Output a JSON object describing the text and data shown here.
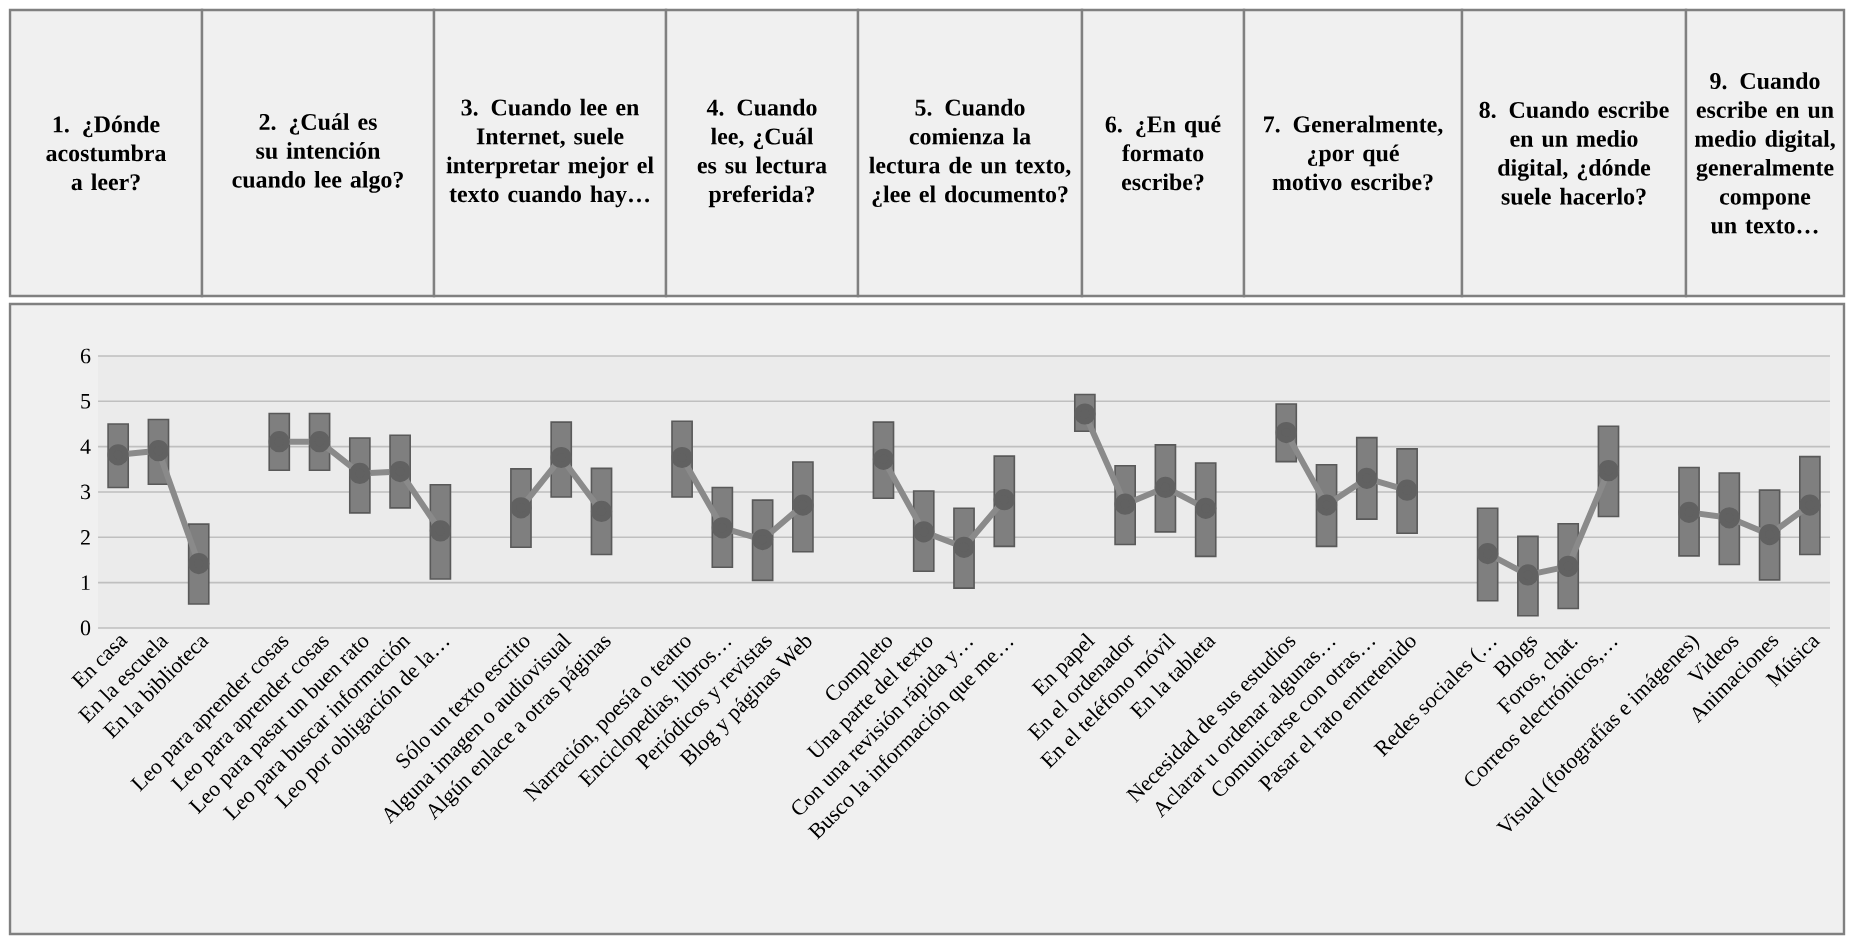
{
  "chart_data": {
    "type": "bar",
    "annotations": [
      "1. ¿Dónde acostumbra a leer?",
      "2. ¿Cuál es su intención cuando lee algo?",
      "3. Cuando lee en Internet, suele interpretar mejor el texto cuando hay…",
      "4. Cuando lee, ¿Cuál es su lectura preferida?",
      "5. Cuando comienza la lectura de un texto, ¿lee el documento?",
      "6. ¿En qué formato escribe?",
      "7. Generalmente, ¿por qué motivo escribe?",
      "8. Cuando escribe en un medio digital, ¿dónde suele hacerlo?",
      "9. Cuando escribe en un medio digital, generalmente compone un texto…"
    ],
    "categories": [
      "En casa",
      "En la escuela",
      "En la biblioteca",
      null,
      "Leo para aprender cosas",
      "Leo para aprender cosas",
      "Leo para pasar un buen rato",
      "Leo para buscar información",
      "Leo por obligación de la…",
      null,
      "Sólo un texto escrito",
      "Alguna imagen o audiovisual",
      "Algún enlace a otras páginas",
      null,
      "Narración, poesía o teatro",
      "Enciclopedias, libros…",
      "Periódicos y revistas",
      "Blog y páginas Web",
      null,
      "Completo",
      "Una parte del texto",
      "Con una revisión rápida y…",
      "Busco la información que me…",
      null,
      "En papel",
      "En el ordenador",
      "En el teléfono móvil",
      "En la tableta",
      null,
      "Necesidad de sus estudios",
      "Aclarar u ordenar algunas…",
      "Comunicarse con otras…",
      "Pasar el rato entretenido",
      null,
      "Redes sociales (…",
      "Blogs",
      "Foros, chat.",
      "Correos electrónicos,…",
      null,
      "Visual (fotografías e imágenes)",
      "Videos",
      "Animaciones",
      "Música"
    ],
    "series": [
      {
        "color": "#7f7f7f",
        "base": [
          3.1,
          3.17,
          0.53,
          null,
          3.48,
          3.48,
          2.54,
          2.65,
          1.08,
          null,
          1.78,
          2.89,
          1.62,
          null,
          2.89,
          1.34,
          1.05,
          1.68,
          null,
          2.86,
          1.25,
          0.88,
          1.8,
          null,
          4.34,
          1.84,
          2.12,
          1.58,
          null,
          3.67,
          1.8,
          2.4,
          2.09,
          null,
          0.6,
          0.27,
          0.43,
          2.46,
          null,
          1.59,
          1.4,
          1.06,
          1.62
        ],
        "values": [
          1.4,
          1.43,
          1.76,
          null,
          1.25,
          1.25,
          1.65,
          1.6,
          2.08,
          null,
          1.73,
          1.65,
          1.9,
          null,
          1.67,
          1.76,
          1.77,
          1.98,
          null,
          1.68,
          1.77,
          1.76,
          1.99,
          null,
          0.81,
          1.74,
          1.92,
          2.06,
          null,
          1.27,
          1.8,
          1.8,
          1.86,
          null,
          2.04,
          1.75,
          1.87,
          1.99,
          null,
          1.95,
          2.02,
          1.98,
          2.16
        ]
      },
      {
        "type": "line",
        "color": "#8a8a8a",
        "marker": "circle",
        "values": [
          3.82,
          3.91,
          1.42,
          null,
          4.11,
          4.11,
          3.41,
          3.45,
          2.14,
          null,
          2.65,
          3.76,
          2.57,
          null,
          3.76,
          2.21,
          1.95,
          2.71,
          null,
          3.72,
          2.12,
          1.78,
          2.83,
          null,
          4.72,
          2.73,
          3.1,
          2.64,
          null,
          4.31,
          2.71,
          3.3,
          3.04,
          null,
          1.64,
          1.17,
          1.36,
          3.47,
          null,
          2.55,
          2.43,
          2.06,
          2.71
        ]
      }
    ],
    "ylim": [
      0,
      6
    ],
    "yticks": [
      0,
      1,
      2,
      3,
      4,
      5,
      6
    ],
    "grid": "y"
  }
}
